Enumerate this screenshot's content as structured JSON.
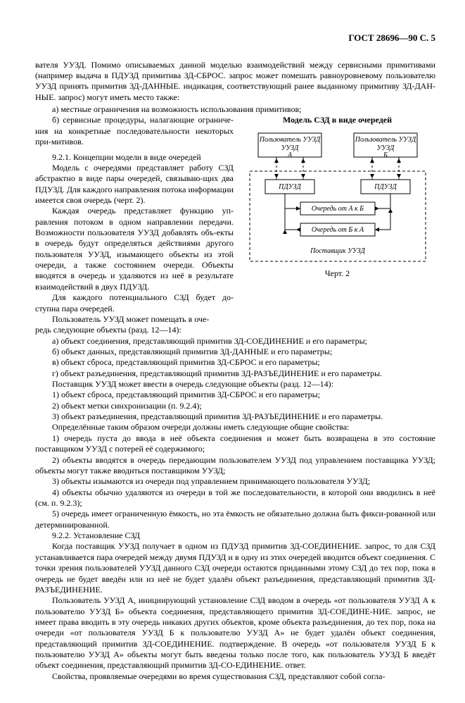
{
  "header": "ГОСТ 28696—90 С. 5",
  "intro": [
    "вателя УУЗД. Помимо описываемых данной моделью взаимодействий между сервисными примитивами (например выдача в ПДУЗД примитива ЗД-СБРОС. запрос может помешать равноуровневому пользователю УУЗД принять примитив ЗД-ДАННЫЕ. индикация, соответствующий ранее выданному примитиву ЗД-ДАН-НЫЕ. запрос) могут иметь место также:",
    "а) местные ограничения на возможность использования примитивов;"
  ],
  "left": [
    "б) сервисные процедуры, налагающие ограниче-ния на конкретные последовательности некоторых при-митивов.",
    "",
    "9.2.1. Концепции модели в виде очередей",
    "Модель с очередями представляет работу СЗД абстрактно в виде пары очередей, связываю-щих два ПДУЗД. Для каждого направления потока информации имеется своя очередь (черт. 2).",
    "Каждая очередь представляет функцию уп-равления потоком в одном направлении передачи. Возможности пользователя УУЗД добавлять объ-екты в очередь будут определяться действиями другого пользователя УУЗД, изымающего объекты из этой очереди, а также состоянием очереди. Объекты вводятся в очередь и удаляются из неё в результате взаимодействий в двух ПДУЗД.",
    "Для каждого потенциального СЗД будет до-ступна пара очередей.",
    "Пользователь УУЗД может помещать в оче-"
  ],
  "figTitle": "Модель СЗД в виде очередей",
  "fig": {
    "userA": "Пользователь УУЗД",
    "A": "А",
    "userB": "Пользователь УУЗД",
    "B": "Б",
    "pduzd": "ПДУЗД",
    "queueAB": "Очередь от А к Б",
    "queueBA": "Очередь от Б к А",
    "provider": "Поставщик УУЗД"
  },
  "figCaption": "Черт. 2",
  "body": [
    "редь следующие объекты (разд. 12—14):",
    "а) объект соединения, представляющий примитив ЗД-СОЕДИНЕНИЕ и его параметры;",
    "б) объект данных, представляющий примитив ЗД-ДАННЫЕ и его параметры;",
    "в) объект сброса, представляющий примитив ЗД-СБРОС и его параметры;",
    "г) объект разъединения, представляющий примитив ЗД-РАЗЪЕДИНЕНИЕ и его параметры.",
    "Поставщик УУЗД может ввести в очередь следующие объекты (разд. 12—14):",
    "1) объект сброса, представляющий примитив ЗД-СБРОС и его параметры;",
    "2) объект метки синхронизации (п. 9.2.4);",
    "3) объект разъединения, представляющий примитив ЗД-РАЗЪЕДИНЕНИЕ и его параметры.",
    "Определённые таким образом очереди должны иметь следующие общие свойства:",
    "1) очередь пуста до ввода в неё объекта соединения и может быть возвращена в это состояние поставщиком УУЗД с потерей её содержимого;",
    "2) объекты вводятся в очередь передающим пользователем УУЗД под управлением поставщика УУЗД; объекты могут также вводиться поставщиком УУЗД;",
    "3) объекты изымаются из очереди под управлением принимающего пользователя УУЗД;",
    "4) объекты обычно удаляются из очереди в той же последовательности, в которой они вводились в неё (см. п. 9.2.3);",
    "5) очередь имеет ограниченную ёмкость, но эта ёмкость не обязательно должна быть фикси-рованной или детерминированной.",
    "9.2.2. Установление СЗД",
    "Когда поставщик УУЗД получает в одном из ПДУЗД примитив ЗД-СОЕДИНЕНИЕ. запрос, то для СЗД устанавливается пара очередей между двумя ПДУЗД и в одну из этих очередей вводится объект соединения. С точки зрения пользователей УУЗД данного СЗД очереди остаются приданными этому СЗД до тех пор, пока в очередь не будет введён или из неё не будет удалён объект разъединения, представляющий примитив ЗД-РАЗЪЕДИНЕНИЕ.",
    "Пользователь УУЗД А, инициирующий установление СЗД вводом в очередь «от пользователя УУЗД А к пользователю УУЗД Б» объекта соединения, представляющего примитив ЗД-СОЕДИНЕ-НИЕ. запрос, не имеет права вводить в эту очередь никаких других объектов, кроме объекта разъединения, до тех пор, пока на очереди «от пользователя УУЗД Б к пользователю УУЗД А» не будет удалён объект соединения, представляющий примитив ЗД-СОЕДИНЕНИЕ. подтверждение. В очередь «от пользователя УУЗД Б к пользователю УУЗД А» объекты могут быть введены только после того, как пользователь УУЗД Б введёт объект соединения, представляющий примитив ЗД-СО-ЕДИНЕНИЕ. ответ.",
    "Свойства, проявляемые очередями во время существования СЗД, представляют собой согла-"
  ]
}
